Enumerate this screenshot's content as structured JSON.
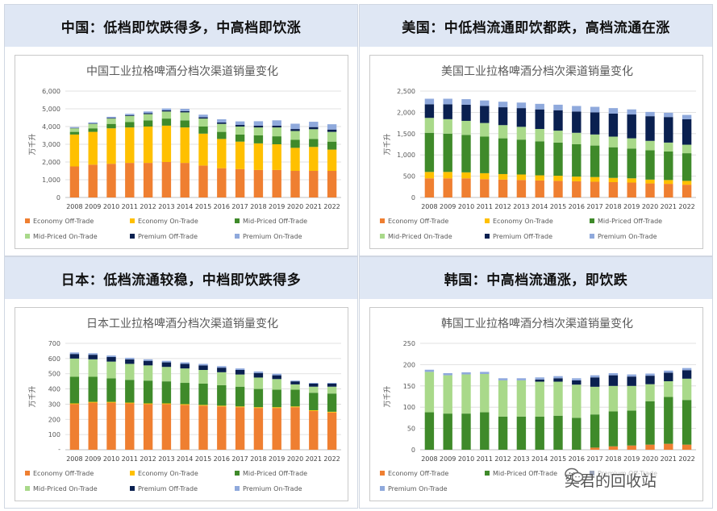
{
  "watermark": {
    "text": "奕君的回收站",
    "icon": "wechat-icon"
  },
  "colors": {
    "Economy Off-Trade": "#ef7f31",
    "Economy On-Trade": "#ffc000",
    "Mid-Priced Off-Trade": "#3f8a2a",
    "Mid-Priced On-Trade": "#a9d98a",
    "Premium Off-Trade": "#0a2050",
    "Premium On-Trade": "#8fa9dc"
  },
  "panels": [
    {
      "heading": "中国：低档即饮跌得多，中高档即饮涨",
      "chart_data": {
        "type": "bar",
        "stacked": true,
        "title": "中国工业拉格啤酒分档次渠道销量变化",
        "ylabel": "万千升",
        "ylim": [
          0,
          6000
        ],
        "yticks": [
          0,
          1000,
          2000,
          3000,
          4000,
          5000,
          6000
        ],
        "ytick_labels": [
          "0",
          "1,000",
          "2,000",
          "3,000",
          "4,000",
          "5,000",
          "6,000"
        ],
        "grid": true,
        "legend": "bottom",
        "categories": [
          "2008",
          "2009",
          "2010",
          "2011",
          "2012",
          "2013",
          "2014",
          "2015",
          "2016",
          "2017",
          "2018",
          "2019",
          "2020",
          "2021",
          "2022"
        ],
        "series": [
          {
            "name": "Economy Off-Trade",
            "values": [
              1750,
              1850,
              1900,
              1950,
              1950,
              2000,
              1950,
              1800,
              1650,
              1600,
              1550,
              1550,
              1500,
              1500,
              1500
            ]
          },
          {
            "name": "Economy On-Trade",
            "values": [
              1800,
              1850,
              2000,
              2000,
              2050,
              2050,
              2000,
              1800,
              1650,
              1550,
              1500,
              1450,
              1300,
              1350,
              1200
            ]
          },
          {
            "name": "Mid-Priced Off-Trade",
            "values": [
              150,
              200,
              250,
              300,
              350,
              400,
              400,
              400,
              400,
              400,
              450,
              450,
              450,
              450,
              450
            ]
          },
          {
            "name": "Mid-Priced On-Trade",
            "values": [
              200,
              250,
              300,
              350,
              350,
              400,
              450,
              450,
              450,
              450,
              450,
              500,
              500,
              550,
              550
            ]
          },
          {
            "name": "Premium Off-Trade",
            "values": [
              20,
              25,
              30,
              40,
              50,
              60,
              70,
              70,
              80,
              90,
              100,
              100,
              110,
              120,
              130
            ]
          },
          {
            "name": "Premium On-Trade",
            "values": [
              50,
              60,
              70,
              80,
              100,
              110,
              130,
              150,
              180,
              200,
              250,
              300,
              300,
              300,
              300
            ]
          }
        ]
      }
    },
    {
      "heading": "美国：中低档流通即饮都跌，高档流通在涨",
      "chart_data": {
        "type": "bar",
        "stacked": true,
        "title": "美国工业拉格啤酒分档次渠道销量变化",
        "ylabel": "万千升",
        "ylim": [
          0,
          2500
        ],
        "yticks": [
          0,
          500,
          1000,
          1500,
          2000,
          2500
        ],
        "ytick_labels": [
          "0",
          "500",
          "1,000",
          "1,500",
          "2,000",
          "2,500"
        ],
        "grid": true,
        "legend": "bottom",
        "categories": [
          "2008",
          "2009",
          "2010",
          "2011",
          "2012",
          "2013",
          "2014",
          "2015",
          "2016",
          "2017",
          "2018",
          "2019",
          "2020",
          "2021",
          "2022"
        ],
        "series": [
          {
            "name": "Economy Off-Trade",
            "values": [
              450,
              450,
              450,
              430,
              420,
              410,
              400,
              390,
              380,
              370,
              360,
              350,
              330,
              320,
              300
            ]
          },
          {
            "name": "Economy On-Trade",
            "values": [
              150,
              150,
              140,
              140,
              130,
              130,
              120,
              120,
              110,
              110,
              100,
              100,
              90,
              90,
              90
            ]
          },
          {
            "name": "Mid-Priced Off-Trade",
            "values": [
              920,
              900,
              880,
              860,
              840,
              820,
              800,
              780,
              760,
              740,
              720,
              700,
              690,
              670,
              650
            ]
          },
          {
            "name": "Mid-Priced On-Trade",
            "values": [
              350,
              340,
              330,
              320,
              310,
              300,
              290,
              280,
              270,
              260,
              250,
              240,
              220,
              210,
              200
            ]
          },
          {
            "name": "Premium Off-Trade",
            "values": [
              320,
              350,
              380,
              400,
              420,
              440,
              460,
              480,
              500,
              520,
              540,
              560,
              580,
              600,
              600
            ]
          },
          {
            "name": "Premium On-Trade",
            "values": [
              130,
              130,
              130,
              130,
              130,
              130,
              130,
              130,
              130,
              130,
              130,
              120,
              100,
              100,
              100
            ]
          }
        ]
      }
    },
    {
      "heading": "日本：低档流通较稳，中档即饮跌得多",
      "chart_data": {
        "type": "bar",
        "stacked": true,
        "title": "日本工业拉格啤酒分档次渠道销量变化",
        "ylabel": "万千升",
        "ylim": [
          0,
          700
        ],
        "yticks": [
          100,
          200,
          300,
          400,
          500,
          600,
          700
        ],
        "ytick_labels": [
          "100",
          "200",
          "300",
          "400",
          "500",
          "600",
          "700"
        ],
        "grid": true,
        "legend": "bottom",
        "categories": [
          "2008",
          "2009",
          "2010",
          "2011",
          "2012",
          "2013",
          "2014",
          "2015",
          "2016",
          "2017",
          "2018",
          "2019",
          "2020",
          "2021",
          "2022"
        ],
        "series": [
          {
            "name": "Economy Off-Trade",
            "values": [
              300,
              310,
              310,
              305,
              300,
              300,
              295,
              290,
              285,
              280,
              275,
              275,
              280,
              255,
              245
            ]
          },
          {
            "name": "Economy On-Trade",
            "values": [
              5,
              5,
              5,
              5,
              5,
              5,
              5,
              5,
              5,
              5,
              5,
              5,
              5,
              5,
              5
            ]
          },
          {
            "name": "Mid-Priced Off-Trade",
            "values": [
              175,
              165,
              155,
              150,
              150,
              145,
              140,
              140,
              135,
              130,
              120,
              115,
              110,
              115,
              120
            ]
          },
          {
            "name": "Mid-Priced On-Trade",
            "values": [
              120,
              115,
              110,
              105,
              100,
              95,
              95,
              90,
              85,
              80,
              75,
              70,
              35,
              40,
              45
            ]
          },
          {
            "name": "Premium Off-Trade",
            "values": [
              30,
              30,
              30,
              30,
              30,
              30,
              30,
              30,
              30,
              30,
              30,
              25,
              20,
              20,
              20
            ]
          },
          {
            "name": "Premium On-Trade",
            "values": [
              10,
              10,
              10,
              10,
              10,
              10,
              10,
              10,
              10,
              10,
              10,
              10,
              5,
              5,
              5
            ]
          }
        ]
      }
    },
    {
      "heading": "韩国：中高档流通涨，即饮跌",
      "chart_data": {
        "type": "bar",
        "stacked": true,
        "title": "韩国工业拉格啤酒分档次渠道销量变化",
        "ylabel": "万千升",
        "ylim": [
          0,
          250
        ],
        "yticks": [
          0,
          50,
          100,
          150,
          200,
          250
        ],
        "ytick_labels": [
          "0",
          "50",
          "100",
          "150",
          "200",
          "250"
        ],
        "grid": true,
        "legend": "bottom",
        "categories": [
          "2008",
          "2009",
          "2010",
          "2011",
          "2012",
          "2013",
          "2014",
          "2015",
          "2016",
          "2017",
          "2018",
          "2019",
          "2020",
          "2021",
          "2022"
        ],
        "series": [
          {
            "name": "Economy Off-Trade",
            "values": [
              0,
              0,
              0,
              0,
              0,
              0,
              0,
              0,
              0,
              5,
              8,
              10,
              12,
              14,
              12
            ]
          },
          {
            "name": "Mid-Priced Off-Trade",
            "values": [
              88,
              85,
              85,
              88,
              78,
              78,
              78,
              80,
              75,
              78,
              82,
              82,
              102,
              110,
              105
            ]
          },
          {
            "name": "Mid-Priced On-Trade",
            "values": [
              95,
              90,
              92,
              90,
              85,
              85,
              82,
              80,
              78,
              65,
              60,
              58,
              40,
              37,
              50
            ]
          },
          {
            "name": "Premium Off-Trade",
            "values": [
              0,
              0,
              0,
              0,
              0,
              0,
              5,
              8,
              10,
              22,
              25,
              22,
              20,
              20,
              20
            ]
          },
          {
            "name": "Premium On-Trade",
            "values": [
              5,
              5,
              5,
              5,
              5,
              5,
              5,
              5,
              5,
              5,
              5,
              5,
              5,
              5,
              5
            ]
          }
        ],
        "legend_visible": [
          "Economy Off-Trade",
          "Mid-Priced Off-Trade",
          "Premium Off-Trade",
          "Premium On-Trade"
        ]
      }
    }
  ]
}
